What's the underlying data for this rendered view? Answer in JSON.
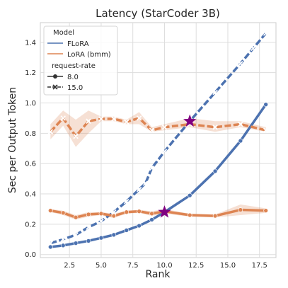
{
  "chart_data": {
    "type": "line",
    "title": "Latency (StarCoder 3B)",
    "xlabel": "Rank",
    "ylabel": "Sec per Output Token",
    "xlim": [
      0.2,
      18.8
    ],
    "ylim": [
      -0.02,
      1.53
    ],
    "xticks": [
      2.5,
      5.0,
      7.5,
      10.0,
      12.5,
      15.0,
      17.5
    ],
    "yticks": [
      0.0,
      0.2,
      0.4,
      0.6,
      0.8,
      1.0,
      1.2,
      1.4
    ],
    "grid": true,
    "legend": {
      "placement": "top-left",
      "model_title": "Model",
      "models": [
        {
          "label": "FLoRA",
          "color": "#4C72B0"
        },
        {
          "label": "LoRA (bmm)",
          "color": "#DD8452"
        }
      ],
      "rate_title": "request-rate",
      "rates": [
        {
          "label": "8.0",
          "marker": "circle",
          "dash": "solid"
        },
        {
          "label": "15.0",
          "marker": "x",
          "dash": "dashed"
        }
      ]
    },
    "series": [
      {
        "model": "FLoRA",
        "rate": "8.0",
        "color": "#4C72B0",
        "marker": "circle",
        "dash": "solid",
        "x": [
          1,
          2,
          3,
          4,
          5,
          6,
          7,
          8,
          9,
          10,
          12,
          14,
          16,
          18
        ],
        "y": [
          0.05,
          0.06,
          0.075,
          0.09,
          0.11,
          0.13,
          0.16,
          0.19,
          0.23,
          0.28,
          0.39,
          0.55,
          0.75,
          0.99
        ]
      },
      {
        "model": "FLoRA",
        "rate": "15.0",
        "color": "#4C72B0",
        "marker": "x",
        "dash": "dashed",
        "x": [
          1,
          2,
          3,
          4,
          5,
          6,
          7,
          8,
          8.5,
          9,
          10,
          12,
          14,
          16,
          17,
          18
        ],
        "y": [
          0.075,
          0.1,
          0.13,
          0.18,
          0.22,
          0.28,
          0.35,
          0.43,
          0.47,
          0.57,
          0.68,
          0.88,
          1.07,
          1.26,
          1.36,
          1.46
        ]
      },
      {
        "model": "LoRA (bmm)",
        "rate": "8.0",
        "color": "#DD8452",
        "marker": "circle",
        "dash": "solid",
        "x": [
          1,
          2,
          3,
          4,
          5,
          6,
          7,
          8,
          9,
          10,
          12,
          14,
          16,
          18
        ],
        "y": [
          0.29,
          0.275,
          0.245,
          0.265,
          0.27,
          0.255,
          0.28,
          0.285,
          0.27,
          0.285,
          0.26,
          0.255,
          0.295,
          0.29
        ],
        "ci_low": [
          0.28,
          0.26,
          0.23,
          0.25,
          0.26,
          0.24,
          0.27,
          0.275,
          0.255,
          0.27,
          0.25,
          0.245,
          0.26,
          0.275
        ],
        "ci_high": [
          0.3,
          0.29,
          0.26,
          0.28,
          0.28,
          0.27,
          0.29,
          0.295,
          0.285,
          0.3,
          0.27,
          0.265,
          0.33,
          0.305
        ]
      },
      {
        "model": "LoRA (bmm)",
        "rate": "15.0",
        "color": "#DD8452",
        "marker": "x",
        "dash": "dashed",
        "x": [
          1,
          2,
          3,
          4,
          5,
          6,
          7,
          8,
          9,
          10,
          12,
          14,
          16,
          18
        ],
        "y": [
          0.81,
          0.9,
          0.78,
          0.88,
          0.895,
          0.895,
          0.875,
          0.9,
          0.82,
          0.84,
          0.86,
          0.84,
          0.86,
          0.82
        ],
        "ci_low": [
          0.76,
          0.85,
          0.71,
          0.8,
          0.88,
          0.88,
          0.86,
          0.86,
          0.81,
          0.82,
          0.84,
          0.81,
          0.84,
          0.81
        ],
        "ci_high": [
          0.86,
          0.95,
          0.89,
          0.95,
          0.91,
          0.91,
          0.89,
          0.94,
          0.84,
          0.86,
          0.9,
          0.88,
          0.88,
          0.84
        ]
      }
    ],
    "highlights": [
      {
        "x": 10,
        "y": 0.28,
        "marker": "star",
        "color": "#800080"
      },
      {
        "x": 12,
        "y": 0.88,
        "marker": "star",
        "color": "#800080"
      }
    ]
  }
}
